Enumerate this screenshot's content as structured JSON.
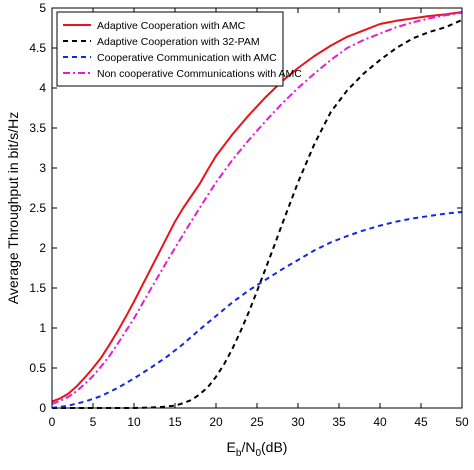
{
  "chart_data": {
    "type": "line",
    "xlabel": {
      "main": "E",
      "sub1": "b",
      "mid": "/N",
      "sub2": "0",
      "tail": "(dB)"
    },
    "ylabel": "Average Throughput in bit/s/Hz",
    "xlim": [
      0,
      50
    ],
    "ylim": [
      0,
      5
    ],
    "xticks": [
      0,
      5,
      10,
      15,
      20,
      25,
      30,
      35,
      40,
      45,
      50
    ],
    "yticks": [
      0,
      0.5,
      1,
      1.5,
      2,
      2.5,
      3,
      3.5,
      4,
      4.5,
      5
    ],
    "grid": false,
    "legend_position": "top-left",
    "series": [
      {
        "name": "Adaptive Cooperation with AMC",
        "color": "#e8141c",
        "dash": "solid",
        "x": [
          0,
          1,
          2,
          3,
          4,
          5,
          6,
          7,
          8,
          9,
          10,
          11,
          12,
          13,
          14,
          15,
          16,
          17,
          18,
          19,
          20,
          22,
          24,
          26,
          28,
          30,
          32,
          34,
          36,
          38,
          40,
          42,
          44,
          46,
          48,
          50
        ],
        "y": [
          0.08,
          0.12,
          0.18,
          0.27,
          0.38,
          0.5,
          0.63,
          0.79,
          0.96,
          1.14,
          1.33,
          1.53,
          1.73,
          1.93,
          2.13,
          2.33,
          2.5,
          2.65,
          2.8,
          2.98,
          3.15,
          3.42,
          3.66,
          3.88,
          4.08,
          4.25,
          4.4,
          4.53,
          4.64,
          4.72,
          4.8,
          4.84,
          4.87,
          4.9,
          4.92,
          4.95
        ]
      },
      {
        "name": "Adaptive Cooperation with 32-PAM",
        "color": "#000000",
        "dash": "dashed",
        "x": [
          0,
          5,
          10,
          13,
          15,
          16,
          17,
          18,
          19,
          20,
          21,
          22,
          23,
          24,
          25,
          26,
          27,
          28,
          29,
          30,
          32,
          34,
          36,
          38,
          40,
          42,
          44,
          46,
          48,
          50
        ],
        "y": [
          0,
          0,
          0,
          0.01,
          0.03,
          0.06,
          0.1,
          0.17,
          0.26,
          0.39,
          0.55,
          0.74,
          0.96,
          1.2,
          1.46,
          1.73,
          2.0,
          2.28,
          2.55,
          2.82,
          3.3,
          3.7,
          3.97,
          4.18,
          4.35,
          4.5,
          4.62,
          4.7,
          4.76,
          4.85
        ]
      },
      {
        "name": "Cooperative Communication with AMC",
        "color": "#1428e0",
        "dash": "dashed",
        "x": [
          0,
          2,
          4,
          6,
          8,
          10,
          12,
          14,
          16,
          18,
          20,
          22,
          24,
          26,
          28,
          30,
          32,
          34,
          36,
          38,
          40,
          42,
          44,
          46,
          48,
          50
        ],
        "y": [
          0,
          0.03,
          0.08,
          0.15,
          0.25,
          0.37,
          0.5,
          0.64,
          0.8,
          0.98,
          1.15,
          1.32,
          1.47,
          1.6,
          1.73,
          1.85,
          1.97,
          2.07,
          2.15,
          2.22,
          2.28,
          2.33,
          2.37,
          2.4,
          2.43,
          2.45
        ]
      },
      {
        "name": "Non cooperative Communications with AMC",
        "color": "#e01ed6",
        "dash": "dashdot",
        "x": [
          0,
          1,
          2,
          3,
          4,
          5,
          6,
          7,
          8,
          9,
          10,
          12,
          14,
          16,
          18,
          20,
          22,
          24,
          26,
          28,
          30,
          32,
          34,
          36,
          38,
          40,
          42,
          44,
          46,
          48,
          50
        ],
        "y": [
          0.05,
          0.09,
          0.14,
          0.21,
          0.3,
          0.4,
          0.52,
          0.65,
          0.8,
          0.96,
          1.12,
          1.48,
          1.83,
          2.17,
          2.5,
          2.82,
          3.1,
          3.35,
          3.58,
          3.8,
          4.0,
          4.18,
          4.35,
          4.5,
          4.6,
          4.68,
          4.76,
          4.82,
          4.87,
          4.91,
          4.94
        ]
      }
    ]
  }
}
